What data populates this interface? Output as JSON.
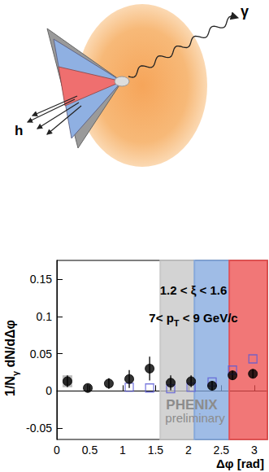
{
  "diagram": {
    "photon_label": "γ",
    "hadron_label": "h"
  },
  "chart_data": {
    "type": "scatter",
    "x_label": [
      {
        "t": "Δφ [rad]"
      }
    ],
    "y_label": [
      {
        "t": "1/N"
      },
      {
        "t": "γ",
        "sub": true
      },
      {
        "t": " dN/dΔφ"
      }
    ],
    "annotations": [
      [
        {
          "t": "1.2 < ξ < 1.6"
        }
      ],
      [
        {
          "t": "7< p"
        },
        {
          "t": "T",
          "sub": true
        },
        {
          "t": " < 9 GeV/c"
        }
      ]
    ],
    "logo": [
      "PHENIX",
      "preliminary"
    ],
    "xlim": [
      0,
      3.2
    ],
    "xticks": [
      0,
      0.5,
      1,
      1.5,
      2,
      2.5,
      3
    ],
    "ylim": [
      -0.065,
      0.175
    ],
    "yticks": [
      -0.05,
      0,
      0.05,
      0.1,
      0.15
    ],
    "grid": false,
    "regions": [
      {
        "xmin": 1.57,
        "xmax": 2.09,
        "color": "#c4c4c4"
      },
      {
        "xmin": 2.09,
        "xmax": 2.62,
        "color": "#7fa6dd"
      },
      {
        "xmin": 2.62,
        "xmax": 3.2,
        "color": "#ec4a4a"
      }
    ],
    "series": [
      {
        "marker": "square",
        "color": "#5a5ad6",
        "x": [
          1.1,
          1.41,
          1.73,
          2.04,
          2.36,
          2.67,
          2.98
        ],
        "values": [
          0.005,
          0.004,
          0.003,
          0.005,
          0.012,
          0.028,
          0.043
        ]
      },
      {
        "marker": "circle",
        "color": "#000000",
        "x": [
          0.16,
          0.47,
          0.79,
          1.1,
          1.41,
          1.73,
          2.04,
          2.36,
          2.67,
          2.98
        ],
        "values": [
          0.013,
          0.004,
          0.01,
          0.016,
          0.03,
          0.011,
          0.013,
          0.007,
          0.021,
          0.023
        ],
        "errors": [
          0.008,
          0.005,
          0.007,
          0.012,
          0.016,
          0.01,
          0.008,
          0.006,
          0.006,
          0.006
        ],
        "sys_errors": [
          0.008,
          null,
          null,
          null,
          null,
          null,
          null,
          null,
          null,
          null
        ]
      }
    ]
  }
}
